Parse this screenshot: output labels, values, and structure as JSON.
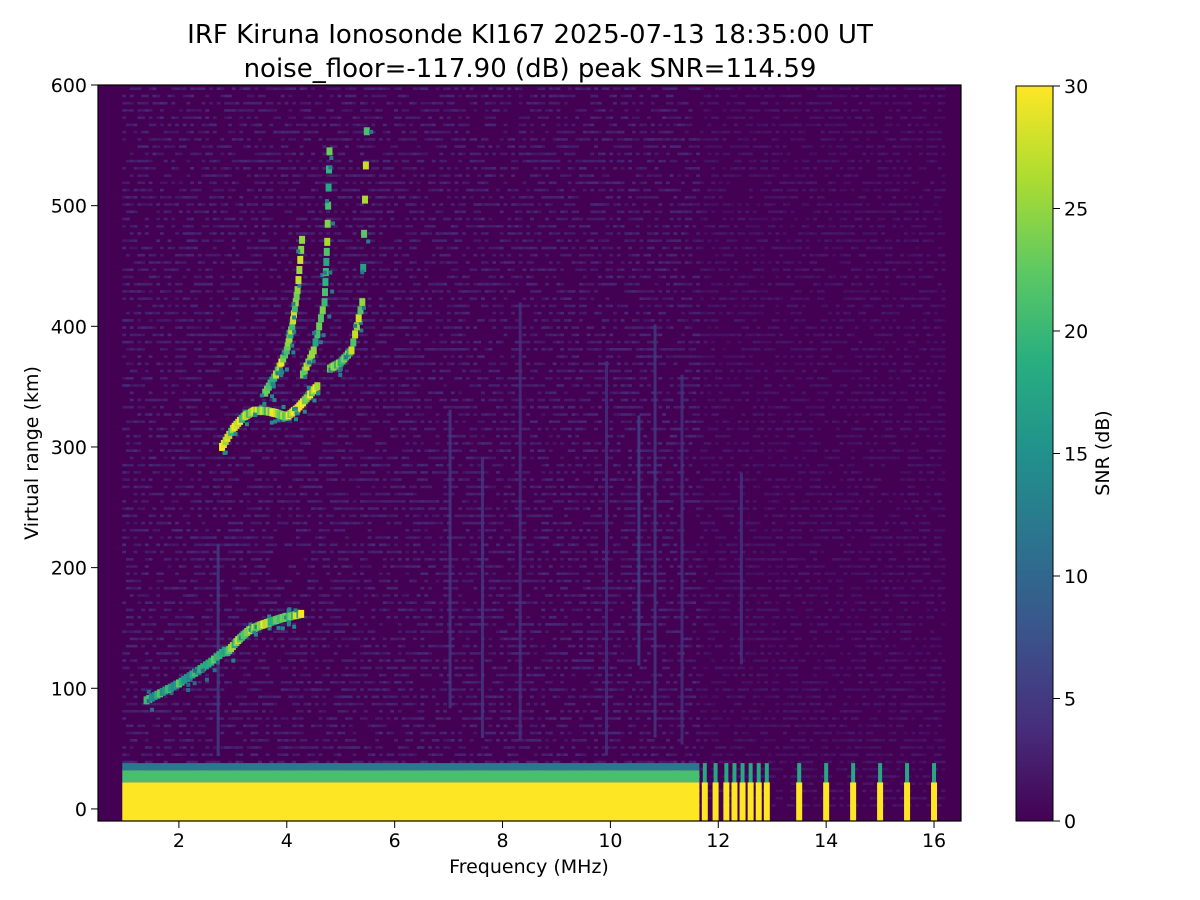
{
  "chart_data": {
    "type": "heatmap",
    "title": "IRF Kiruna Ionosonde KI167 2025-07-13 18:35:00  UT",
    "subtitle": "noise_floor=-117.90 (dB) peak SNR=114.59",
    "xlabel": "Frequency (MHz)",
    "ylabel": "Virtual range (km)",
    "colorbar_label": "SNR (dB)",
    "colormap": "viridis",
    "xlim": [
      0.5,
      16.5
    ],
    "ylim": [
      -10,
      600
    ],
    "clim": [
      0,
      30
    ],
    "x_ticks": [
      "2",
      "4",
      "6",
      "8",
      "10",
      "12",
      "14",
      "16"
    ],
    "y_ticks": [
      "0",
      "100",
      "200",
      "300",
      "400",
      "500",
      "600"
    ],
    "colorbar_ticks": [
      "0",
      "5",
      "10",
      "15",
      "20",
      "25",
      "30"
    ],
    "background_color": "#440154",
    "saturated_color": "#fde725",
    "data_extent": {
      "f_start": 0.95,
      "f_end_contiguous": 11.65,
      "f_end": 16.2
    },
    "series": [
      {
        "x": [
          1.4,
          1.7,
          2.0,
          2.3,
          2.6,
          2.9
        ],
        "y": [
          90,
          97,
          104,
          113,
          122,
          133
        ],
        "snr": 18
      },
      {
        "x": [
          2.9,
          3.1,
          3.3,
          3.5,
          3.7,
          3.9,
          4.1,
          4.3
        ],
        "y": [
          130,
          140,
          148,
          152,
          155,
          158,
          160,
          162
        ],
        "snr": 24
      },
      {
        "x": [
          2.8,
          3.0,
          3.2,
          3.4,
          3.6,
          3.8,
          4.0,
          4.2,
          4.4,
          4.6
        ],
        "y": [
          300,
          315,
          325,
          330,
          330,
          328,
          325,
          332,
          342,
          352
        ],
        "snr": 26
      },
      {
        "x": [
          3.6,
          3.8,
          4.0,
          4.1,
          4.2,
          4.3
        ],
        "y": [
          345,
          360,
          380,
          400,
          430,
          480
        ],
        "snr": 24
      },
      {
        "x": [
          4.3,
          4.5,
          4.7,
          4.75,
          4.8
        ],
        "y": [
          360,
          380,
          420,
          470,
          560
        ],
        "snr": 22
      },
      {
        "x": [
          4.8,
          5.0,
          5.2,
          5.4,
          5.5
        ],
        "y": [
          365,
          370,
          380,
          420,
          590
        ],
        "snr": 22
      }
    ],
    "vertical_streaks_mhz": [
      2.7,
      7.0,
      7.6,
      8.3,
      9.9,
      10.5,
      10.8,
      11.3,
      12.4
    ],
    "pulsed_bars_mhz": [
      11.75,
      11.95,
      12.15,
      12.3,
      12.45,
      12.6,
      12.75,
      12.9,
      13.5,
      14.0,
      14.5,
      15.0,
      15.5,
      16.0
    ],
    "ground_band_top_km": 22
  }
}
